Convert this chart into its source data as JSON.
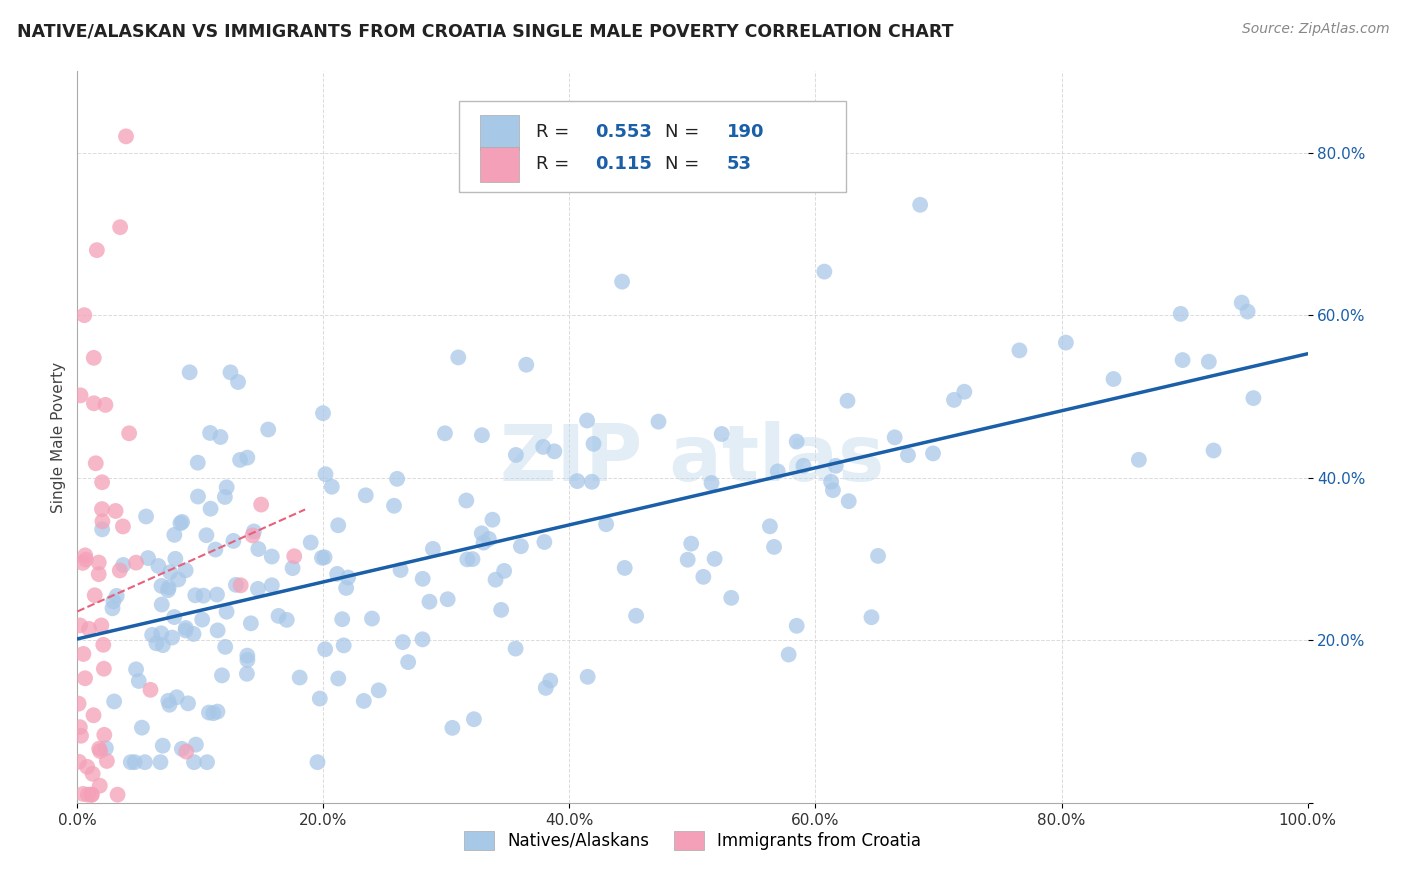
{
  "title": "NATIVE/ALASKAN VS IMMIGRANTS FROM CROATIA SINGLE MALE POVERTY CORRELATION CHART",
  "source": "Source: ZipAtlas.com",
  "ylabel": "Single Male Poverty",
  "xlim": [
    0.0,
    1.0
  ],
  "ylim": [
    0.0,
    0.9
  ],
  "x_ticks": [
    0.0,
    0.2,
    0.4,
    0.6,
    0.8,
    1.0
  ],
  "x_tick_labels": [
    "0.0%",
    "20.0%",
    "40.0%",
    "60.0%",
    "80.0%",
    "100.0%"
  ],
  "y_ticks": [
    0.0,
    0.2,
    0.4,
    0.6,
    0.8
  ],
  "y_tick_labels": [
    "",
    "20.0%",
    "40.0%",
    "60.0%",
    "80.0%"
  ],
  "blue_R": "0.553",
  "blue_N": "190",
  "pink_R": "0.115",
  "pink_N": "53",
  "blue_color": "#a8c8e8",
  "pink_color": "#f4a0b8",
  "blue_line_color": "#1a5fa8",
  "pink_line_color": "#e8607a",
  "legend_label_blue": "Natives/Alaskans",
  "legend_label_pink": "Immigrants from Croatia",
  "background_color": "#ffffff",
  "grid_color": "#cccccc",
  "title_color": "#222222",
  "source_color": "#888888",
  "yaxis_tick_color": "#1a5fa8",
  "rn_value_color": "#1a5fa8"
}
